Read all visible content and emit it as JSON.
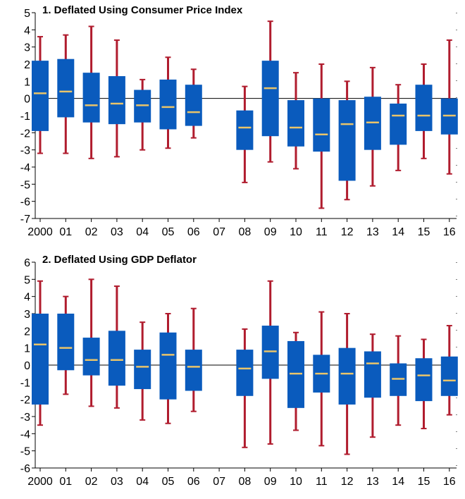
{
  "chart_data": [
    {
      "type": "box",
      "title": "1. Deflated Using Consumer Price Index",
      "xlabel": "",
      "ylabel": "",
      "ylim": [
        -7,
        5
      ],
      "yticks": [
        -7,
        -6,
        -5,
        -4,
        -3,
        -2,
        -1,
        0,
        1,
        2,
        3,
        4,
        5
      ],
      "categories": [
        "2000",
        "01",
        "02",
        "03",
        "04",
        "05",
        "06",
        "07",
        "08",
        "09",
        "10",
        "11",
        "12",
        "13",
        "14",
        "15",
        "16"
      ],
      "boxes": [
        {
          "min": -3.2,
          "q1": -1.9,
          "median": 0.3,
          "q3": 2.2,
          "max": 3.6
        },
        {
          "min": -3.2,
          "q1": -1.1,
          "median": 0.4,
          "q3": 2.3,
          "max": 3.7
        },
        {
          "min": -3.5,
          "q1": -1.4,
          "median": -0.4,
          "q3": 1.5,
          "max": 4.2
        },
        {
          "min": -3.4,
          "q1": -1.5,
          "median": -0.3,
          "q3": 1.3,
          "max": 3.4
        },
        {
          "min": -3.0,
          "q1": -1.4,
          "median": -0.4,
          "q3": 0.5,
          "max": 1.1
        },
        {
          "min": -2.9,
          "q1": -1.8,
          "median": -0.5,
          "q3": 1.1,
          "max": 2.4
        },
        {
          "min": -2.3,
          "q1": -1.6,
          "median": -0.8,
          "q3": 0.8,
          "max": 1.7
        },
        null,
        {
          "min": -4.9,
          "q1": -3.0,
          "median": -1.7,
          "q3": -0.7,
          "max": 0.7
        },
        {
          "min": -3.7,
          "q1": -2.2,
          "median": 0.6,
          "q3": 2.2,
          "max": 4.5
        },
        {
          "min": -4.1,
          "q1": -2.8,
          "median": -1.7,
          "q3": -0.1,
          "max": 1.5
        },
        {
          "min": -6.4,
          "q1": -3.1,
          "median": -2.1,
          "q3": 0.0,
          "max": 2.0
        },
        {
          "min": -5.9,
          "q1": -4.8,
          "median": -1.5,
          "q3": -0.1,
          "max": 1.0
        },
        {
          "min": -5.1,
          "q1": -3.0,
          "median": -1.4,
          "q3": 0.1,
          "max": 1.8
        },
        {
          "min": -4.2,
          "q1": -2.7,
          "median": -1.0,
          "q3": -0.3,
          "max": 0.8
        },
        {
          "min": -3.5,
          "q1": -1.9,
          "median": -1.0,
          "q3": 0.8,
          "max": 2.0
        },
        {
          "min": -4.4,
          "q1": -2.1,
          "median": -1.0,
          "q3": 0.0,
          "max": 3.4
        }
      ]
    },
    {
      "type": "box",
      "title": "2. Deflated Using GDP Deflator",
      "xlabel": "",
      "ylabel": "",
      "ylim": [
        -6,
        6
      ],
      "yticks": [
        -6,
        -5,
        -4,
        -3,
        -2,
        -1,
        0,
        1,
        2,
        3,
        4,
        5,
        6
      ],
      "categories": [
        "2000",
        "01",
        "02",
        "03",
        "04",
        "05",
        "06",
        "07",
        "08",
        "09",
        "10",
        "11",
        "12",
        "13",
        "14",
        "15",
        "16"
      ],
      "boxes": [
        {
          "min": -3.5,
          "q1": -2.3,
          "median": 1.2,
          "q3": 3.0,
          "max": 4.9
        },
        {
          "min": -1.7,
          "q1": -0.3,
          "median": 1.0,
          "q3": 3.0,
          "max": 4.0
        },
        {
          "min": -2.4,
          "q1": -0.6,
          "median": 0.3,
          "q3": 1.6,
          "max": 5.0
        },
        {
          "min": -2.5,
          "q1": -1.2,
          "median": 0.3,
          "q3": 2.0,
          "max": 4.6
        },
        {
          "min": -3.2,
          "q1": -1.4,
          "median": -0.1,
          "q3": 0.9,
          "max": 2.5
        },
        {
          "min": -3.4,
          "q1": -2.0,
          "median": 0.6,
          "q3": 1.9,
          "max": 3.0
        },
        {
          "min": -2.7,
          "q1": -1.5,
          "median": -0.1,
          "q3": 0.9,
          "max": 3.3
        },
        null,
        {
          "min": -4.8,
          "q1": -1.8,
          "median": -0.2,
          "q3": 0.9,
          "max": 2.1
        },
        {
          "min": -4.6,
          "q1": -0.8,
          "median": 0.8,
          "q3": 2.3,
          "max": 4.9
        },
        {
          "min": -3.8,
          "q1": -2.5,
          "median": -0.5,
          "q3": 1.4,
          "max": 1.9
        },
        {
          "min": -4.7,
          "q1": -1.6,
          "median": -0.5,
          "q3": 0.6,
          "max": 3.1
        },
        {
          "min": -5.2,
          "q1": -2.3,
          "median": -0.5,
          "q3": 1.0,
          "max": 3.0
        },
        {
          "min": -4.2,
          "q1": -1.9,
          "median": 0.1,
          "q3": 0.8,
          "max": 1.8
        },
        {
          "min": -3.5,
          "q1": -1.8,
          "median": -0.8,
          "q3": 0.1,
          "max": 1.7
        },
        {
          "min": -3.7,
          "q1": -2.1,
          "median": -0.6,
          "q3": 0.4,
          "max": 1.5
        },
        {
          "min": -2.9,
          "q1": -1.8,
          "median": -0.9,
          "q3": 0.5,
          "max": 2.3
        }
      ]
    }
  ],
  "colors": {
    "box_fill": "#0a5bbd",
    "whisker": "#b01c2e",
    "median": "#e9c46a",
    "axis": "#000000"
  }
}
